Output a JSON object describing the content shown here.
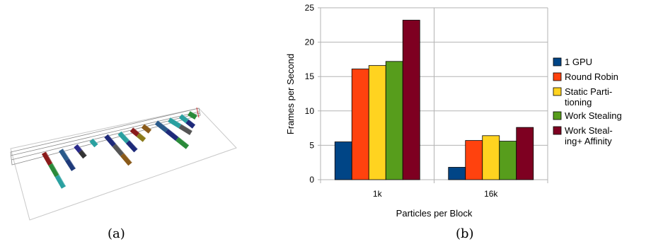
{
  "captions": {
    "a": "(a)",
    "b": "(b)"
  },
  "chart_data": {
    "type": "bar",
    "categories": [
      "1k",
      "16k"
    ],
    "series": [
      {
        "name": "1 GPU",
        "color": "#004586",
        "values": [
          5.5,
          1.8
        ]
      },
      {
        "name": " Round Robin",
        "color": "#ff420e",
        "values": [
          16.1,
          5.7
        ]
      },
      {
        "name": "Static Parti-\ntioning",
        "color": "#ffd320",
        "values": [
          16.6,
          6.4
        ]
      },
      {
        "name": "Work Stealing",
        "color": "#579d1c",
        "values": [
          17.2,
          5.6
        ]
      },
      {
        "name": "Work Steal-\ning+ Affinity",
        "color": "#7e0021",
        "values": [
          23.2,
          7.6
        ]
      }
    ],
    "xlabel": "Particles per Block",
    "ylabel": "Frames per Second",
    "ylim": [
      0,
      25
    ],
    "yticks": [
      0,
      5,
      10,
      15,
      20,
      25
    ],
    "grid": true,
    "legend": "right"
  }
}
